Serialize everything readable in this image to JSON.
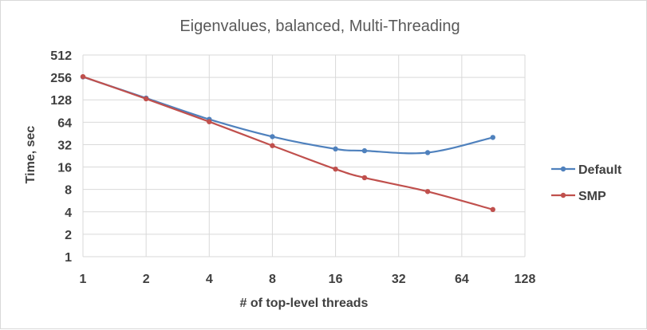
{
  "chart_data": {
    "type": "line",
    "title": "Eigenvalues, balanced, Multi-Threading",
    "xlabel": "# of top-level threads",
    "ylabel": "Time, sec",
    "x_scale": "log2",
    "y_scale": "log2",
    "xlim": [
      1,
      128
    ],
    "ylim": [
      1,
      512
    ],
    "x_ticks": [
      1,
      2,
      4,
      8,
      16,
      32,
      64,
      128
    ],
    "y_ticks": [
      1,
      2,
      4,
      8,
      16,
      32,
      64,
      128,
      256,
      512
    ],
    "x_tick_labels": [
      "1",
      "2",
      "4",
      "8",
      "16",
      "32",
      "64",
      "128"
    ],
    "y_tick_labels": [
      "1",
      "2",
      "4",
      "8",
      "16",
      "32",
      "64",
      "128",
      "256",
      "512"
    ],
    "grid": true,
    "legend": "right",
    "series": [
      {
        "name": "Default",
        "color": "#4f81bd",
        "smooth": true,
        "points": [
          [
            1,
            260
          ],
          [
            2,
            135
          ],
          [
            4,
            70
          ],
          [
            8,
            41
          ],
          [
            16,
            28
          ],
          [
            22,
            26.5
          ],
          [
            44,
            25
          ],
          [
            90,
            40
          ]
        ]
      },
      {
        "name": "SMP",
        "color": "#c0504d",
        "smooth": true,
        "points": [
          [
            1,
            262
          ],
          [
            2,
            132
          ],
          [
            4,
            65
          ],
          [
            8,
            31
          ],
          [
            16,
            15
          ],
          [
            22,
            11.5
          ],
          [
            44,
            7.5
          ],
          [
            90,
            4.3
          ]
        ]
      }
    ]
  }
}
